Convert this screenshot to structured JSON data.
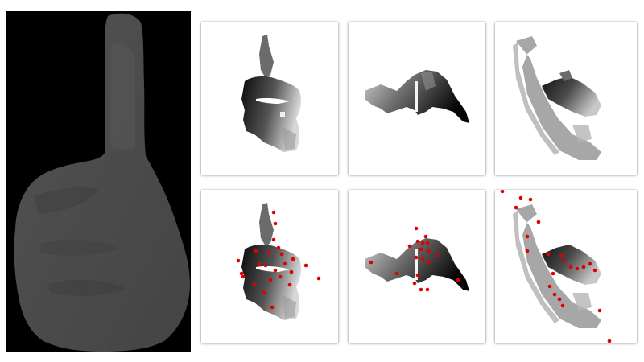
{
  "figure": {
    "depth_map": {
      "background_color": "#000000",
      "hand_color": "#4a4a4a"
    },
    "tiles": [
      {
        "id": "view-front",
        "row": 1,
        "col": 1,
        "keypoints_shown": false
      },
      {
        "id": "view-side",
        "row": 1,
        "col": 2,
        "keypoints_shown": false
      },
      {
        "id": "view-top",
        "row": 1,
        "col": 3,
        "keypoints_shown": false
      },
      {
        "id": "view-front-keypoints",
        "row": 2,
        "col": 1,
        "keypoints_shown": true
      },
      {
        "id": "view-side-keypoints",
        "row": 2,
        "col": 2,
        "keypoints_shown": true
      },
      {
        "id": "view-top-keypoints",
        "row": 2,
        "col": 3,
        "keypoints_shown": true
      }
    ],
    "keypoint_color": "#e00000",
    "tile_background": "#ffffff"
  }
}
